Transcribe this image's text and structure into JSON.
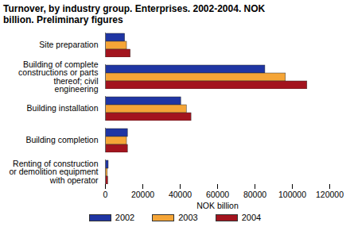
{
  "chart_data": {
    "type": "bar",
    "orientation": "horizontal",
    "title": "Turnover, by industry group. Enterprises. 2002-2004. NOK billion. Preliminary figures",
    "categories": [
      "Site preparation",
      "Building of complete constructions or parts thereof; civil engineering",
      "Building installation",
      "Building completion",
      "Renting of construction or demolition equipment with operator"
    ],
    "series": [
      {
        "name": "2002",
        "color": "#1f35a3",
        "values": [
          10500,
          85500,
          40500,
          12000,
          1700
        ]
      },
      {
        "name": "2003",
        "color": "#f5a537",
        "values": [
          11500,
          96500,
          43500,
          11500,
          1200
        ]
      },
      {
        "name": "2004",
        "color": "#a3141e",
        "values": [
          13500,
          108000,
          46000,
          12000,
          1400
        ]
      }
    ],
    "xlabel": "NOK billion",
    "xlim": [
      0,
      120000
    ],
    "xticks": [
      0,
      20000,
      40000,
      60000,
      80000,
      100000,
      120000
    ],
    "grid": false,
    "legend": "bottom"
  }
}
